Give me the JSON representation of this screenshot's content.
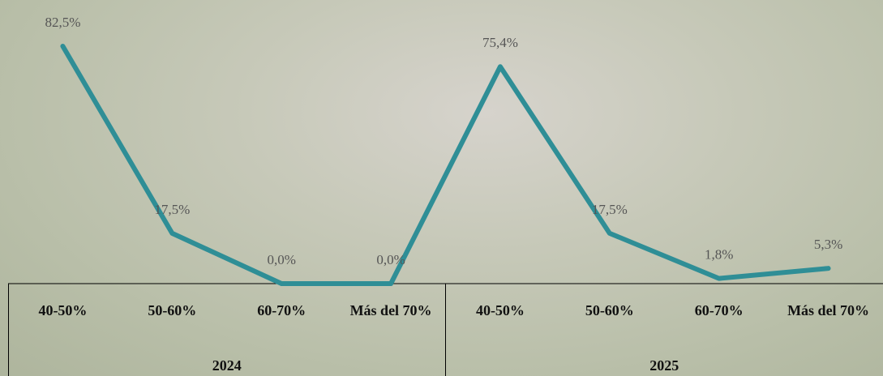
{
  "chart_data": {
    "type": "line",
    "categories": [
      "40-50%",
      "50-60%",
      "60-70%",
      "Más del 70%",
      "40-50%",
      "50-60%",
      "60-70%",
      "Más del 70%"
    ],
    "groups": [
      "2024",
      "2025"
    ],
    "values": [
      82.5,
      17.5,
      0,
      0,
      75.4,
      17.5,
      1.8,
      5.3
    ],
    "value_labels": [
      "82,5%",
      "17,5%",
      "0,0%",
      "0,0%",
      "75,4%",
      "17,5%",
      "1,8%",
      "5,3%"
    ],
    "color": "#2f8e96"
  }
}
